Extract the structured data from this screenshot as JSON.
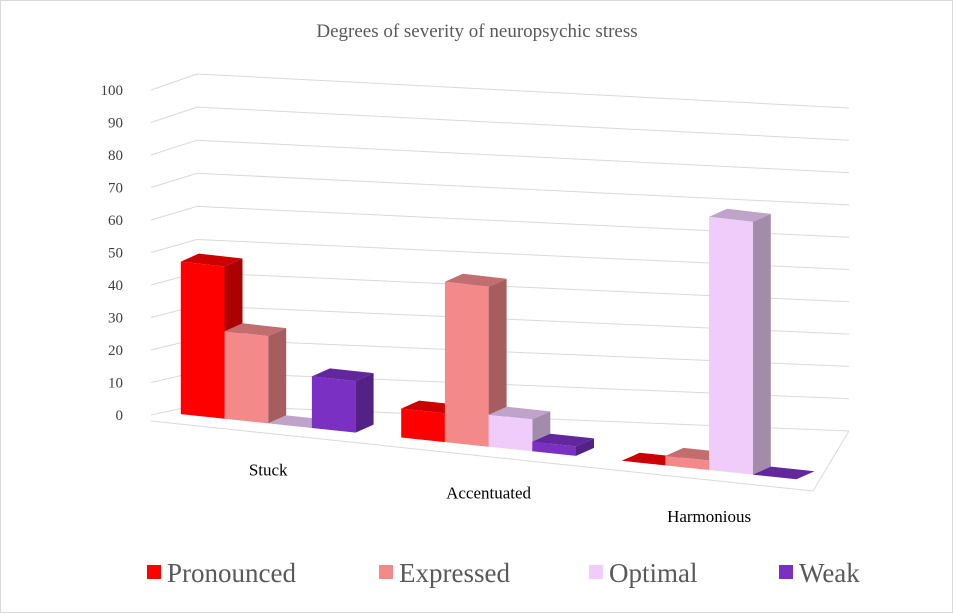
{
  "chart_data": {
    "type": "bar",
    "title": "Degrees of severity of neuropsychic stress",
    "categories": [
      "Stuck",
      "Accentuated",
      "Harmonious"
    ],
    "series": [
      {
        "name": "Pronounced",
        "color": "#ff0000",
        "values": [
          47,
          9,
          0
        ]
      },
      {
        "name": "Expressed",
        "color": "#f4898a",
        "values": [
          27,
          50,
          3
        ]
      },
      {
        "name": "Optimal",
        "color": "#f0ccfa",
        "values": [
          0,
          10,
          80
        ]
      },
      {
        "name": "Weak",
        "color": "#7b30c4",
        "values": [
          16,
          3,
          0
        ]
      }
    ],
    "ylim": [
      0,
      100
    ],
    "yticks": [
      "0",
      "10",
      "20",
      "30",
      "40",
      "50",
      "60",
      "70",
      "80",
      "90",
      "100"
    ],
    "grid": true,
    "legend_position": "bottom",
    "style": "3d-clustered-column"
  }
}
